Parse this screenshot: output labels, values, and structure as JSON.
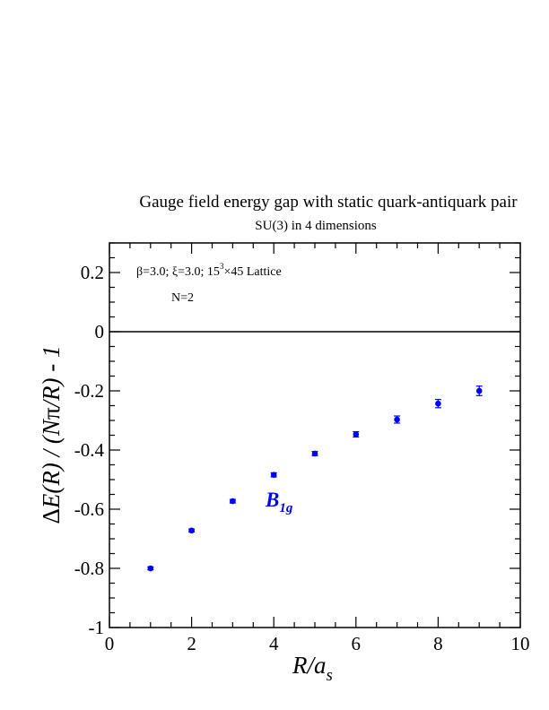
{
  "chart_data": {
    "type": "scatter",
    "title": "Gauge field energy gap with static quark-antiquark pair",
    "subtitle": "SU(3) in 4 dimensions",
    "xlabel": "R/a_s",
    "ylabel": "ΔE(R) / (Nπ/R) - 1",
    "xlim": [
      0,
      10
    ],
    "ylim": [
      -1,
      0.3
    ],
    "x_ticks": [
      0,
      2,
      4,
      6,
      8,
      10
    ],
    "x_tick_labels": [
      "0",
      "2",
      "4",
      "6",
      "8",
      "10"
    ],
    "y_ticks": [
      -1,
      -0.8,
      -0.6,
      -0.4,
      -0.2,
      0,
      0.2
    ],
    "y_tick_labels": [
      "-1",
      "-0.8",
      "-0.6",
      "-0.4",
      "-0.2",
      "0",
      "0.2"
    ],
    "reference_line_y": 0,
    "annotations": {
      "line1": "β=3.0; ξ=3.0; 15³×45 Lattice",
      "line2": "N=2"
    },
    "series": [
      {
        "name": "B1g",
        "color": "#0000ff",
        "x": [
          1,
          2,
          3,
          4,
          5,
          6,
          7,
          8,
          9
        ],
        "y": [
          -0.8,
          -0.672,
          -0.573,
          -0.484,
          -0.412,
          -0.347,
          -0.297,
          -0.243,
          -0.2
        ],
        "err": [
          0.005,
          0.005,
          0.006,
          0.007,
          0.007,
          0.009,
          0.012,
          0.014,
          0.016
        ]
      }
    ]
  }
}
